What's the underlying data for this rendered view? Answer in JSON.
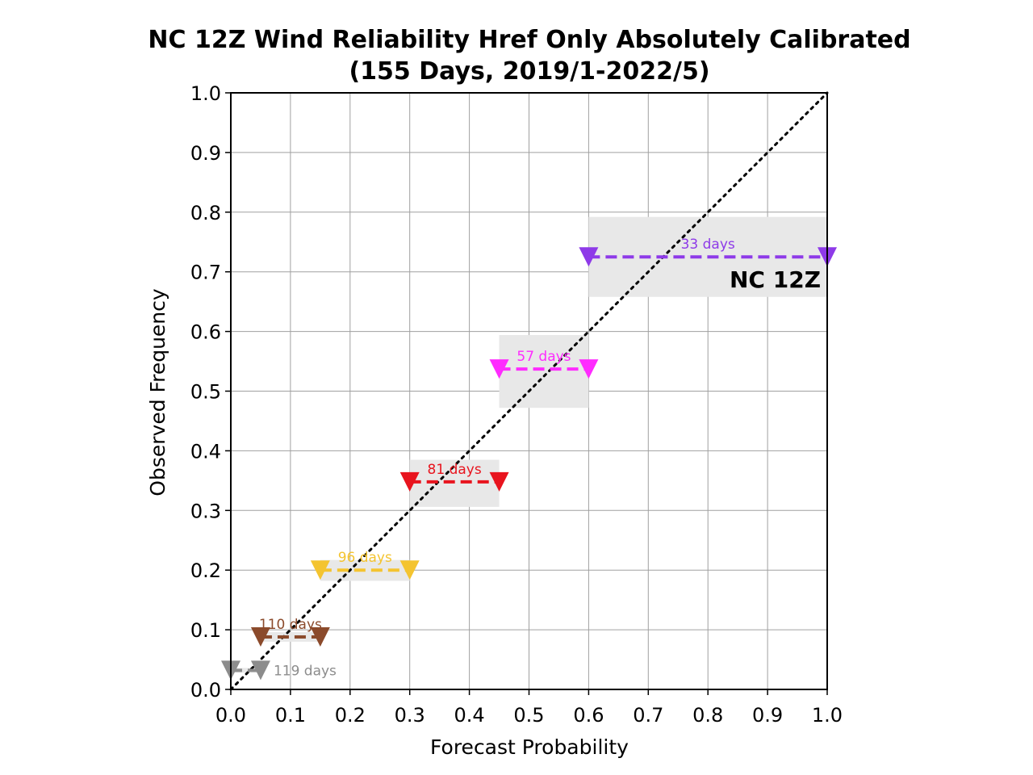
{
  "chart_data": {
    "type": "scatter",
    "title_line1": "NC 12Z Wind Reliability Href Only Absolutely Calibrated",
    "title_line2": "(155 Days, 2019/1-2022/5)",
    "xlabel": "Forecast Probability",
    "ylabel": "Observed Frequency",
    "xlim": [
      0.0,
      1.0
    ],
    "ylim": [
      0.0,
      1.0
    ],
    "xticks": [
      "0.0",
      "0.1",
      "0.2",
      "0.3",
      "0.4",
      "0.5",
      "0.6",
      "0.7",
      "0.8",
      "0.9",
      "1.0"
    ],
    "yticks": [
      "0.0",
      "0.1",
      "0.2",
      "0.3",
      "0.4",
      "0.5",
      "0.6",
      "0.7",
      "0.8",
      "0.9",
      "1.0"
    ],
    "grid": true,
    "reference_line": "diagonal dotted y=x",
    "region_label": "NC 12Z",
    "series": [
      {
        "x_start": 0.0,
        "x_end": 0.05,
        "y": 0.032,
        "y_low": 0.028,
        "y_high": 0.036,
        "days_label": "119 days",
        "color": "#8c8c8c"
      },
      {
        "x_start": 0.05,
        "x_end": 0.15,
        "y": 0.088,
        "y_low": 0.08,
        "y_high": 0.096,
        "days_label": "110 days",
        "color": "#8b4a2b"
      },
      {
        "x_start": 0.15,
        "x_end": 0.3,
        "y": 0.2,
        "y_low": 0.182,
        "y_high": 0.217,
        "days_label": "96 days",
        "color": "#f4c430"
      },
      {
        "x_start": 0.3,
        "x_end": 0.45,
        "y": 0.348,
        "y_low": 0.306,
        "y_high": 0.385,
        "days_label": "81 days",
        "color": "#e8141e"
      },
      {
        "x_start": 0.45,
        "x_end": 0.6,
        "y": 0.537,
        "y_low": 0.472,
        "y_high": 0.594,
        "days_label": "57 days",
        "color": "#ff2bff"
      },
      {
        "x_start": 0.6,
        "x_end": 1.0,
        "y": 0.725,
        "y_low": 0.658,
        "y_high": 0.792,
        "days_label": "33 days",
        "color": "#8e3ae8"
      }
    ]
  }
}
